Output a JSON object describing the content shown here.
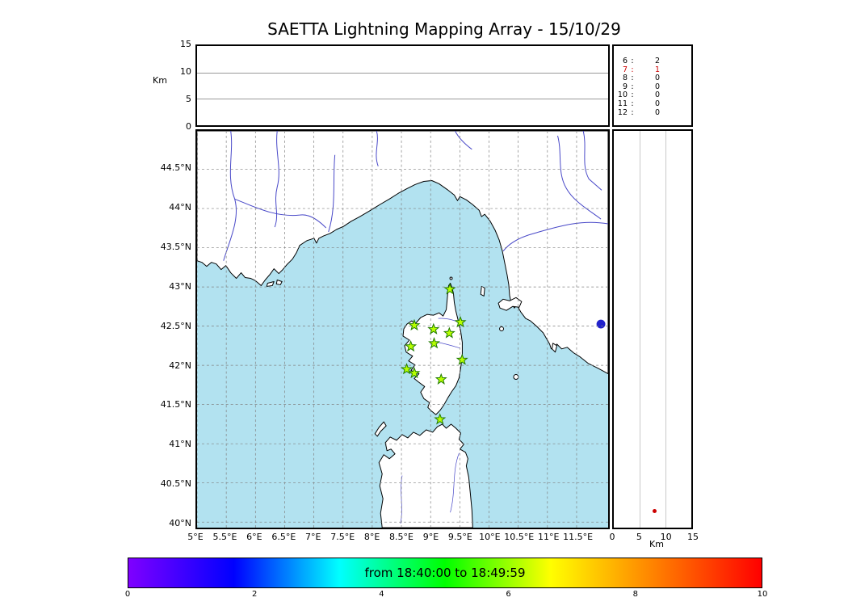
{
  "colors": {
    "sea": "#b2e2f0",
    "river": "#4848c8",
    "star_fill": "#b8ff00",
    "star_edge": "#1f7a00",
    "highlight": "#cc0000",
    "lake": "#2222cc"
  },
  "chart_data": {
    "type": "scatter",
    "title": "SAETTA Lightning Mapping Array - 15/10/29",
    "time_window": "from 18:40:00 to 18:49:59",
    "panels": {
      "alt_lon": {
        "ylabel": "Km",
        "yticks": [
          15,
          10,
          5,
          0
        ],
        "yrange": [
          0,
          15
        ],
        "gridlines": [
          5,
          10
        ]
      },
      "map": {
        "lon_range": [
          5,
          12.04
        ],
        "lat_range": [
          39.93,
          44.99
        ],
        "lon_ticks": [
          {
            "v": 5,
            "label": "5°E"
          },
          {
            "v": 5.5,
            "label": "5.5°E"
          },
          {
            "v": 6,
            "label": "6°E"
          },
          {
            "v": 6.5,
            "label": "6.5°E"
          },
          {
            "v": 7,
            "label": "7°E"
          },
          {
            "v": 7.5,
            "label": "7.5°E"
          },
          {
            "v": 8,
            "label": "8°E"
          },
          {
            "v": 8.5,
            "label": "8.5°E"
          },
          {
            "v": 9,
            "label": "9°E"
          },
          {
            "v": 9.5,
            "label": "9.5°E"
          },
          {
            "v": 10,
            "label": "10°E"
          },
          {
            "v": 10.5,
            "label": "10.5°E"
          },
          {
            "v": 11,
            "label": "11°E"
          },
          {
            "v": 11.5,
            "label": "11.5°E"
          }
        ],
        "lat_ticks": [
          {
            "v": 44.5,
            "label": "44.5°N"
          },
          {
            "v": 44,
            "label": "44°N"
          },
          {
            "v": 43.5,
            "label": "43.5°N"
          },
          {
            "v": 43,
            "label": "43°N"
          },
          {
            "v": 42.5,
            "label": "42.5°N"
          },
          {
            "v": 42,
            "label": "42°N"
          },
          {
            "v": 41.5,
            "label": "41.5°N"
          },
          {
            "v": 41,
            "label": "41°N"
          },
          {
            "v": 40.5,
            "label": "40.5°N"
          },
          {
            "v": 40,
            "label": "40°N"
          }
        ],
        "stations_lonlat": [
          [
            9.33,
            42.97
          ],
          [
            8.72,
            42.51
          ],
          [
            9.05,
            42.46
          ],
          [
            9.32,
            42.41
          ],
          [
            9.51,
            42.55
          ],
          [
            8.66,
            42.24
          ],
          [
            9.06,
            42.28
          ],
          [
            8.59,
            41.95
          ],
          [
            8.72,
            41.9
          ],
          [
            9.54,
            42.07
          ],
          [
            9.18,
            41.82
          ],
          [
            9.16,
            41.31
          ]
        ]
      },
      "alt_lat": {
        "xlabel": "Km",
        "xticks": [
          0,
          5,
          10,
          15
        ],
        "xrange": [
          0,
          15
        ],
        "gridlines": [
          5,
          10
        ],
        "points_km_lat": [
          [
            7.8,
            40.15
          ]
        ]
      },
      "counts_by_alt_km": {
        "rows": [
          {
            "km": "6",
            "count": "2",
            "highlight": false
          },
          {
            "km": "7",
            "count": "1",
            "highlight": true
          },
          {
            "km": "8",
            "count": "0",
            "highlight": false
          },
          {
            "km": "9",
            "count": "0",
            "highlight": false
          },
          {
            "km": "10",
            "count": "0",
            "highlight": false
          },
          {
            "km": "11",
            "count": "0",
            "highlight": false
          },
          {
            "km": "12",
            "count": "0",
            "highlight": false
          }
        ]
      }
    },
    "colorbar": {
      "label": "from 18:40:00 to 18:49:59",
      "range": [
        0,
        10
      ],
      "ticks": [
        0,
        2,
        4,
        6,
        8,
        10
      ],
      "gradient": [
        "#7f00ff",
        "#0000ff",
        "#00ffff",
        "#00ff00",
        "#ffff00",
        "#ff7f00",
        "#ff0000"
      ]
    }
  }
}
